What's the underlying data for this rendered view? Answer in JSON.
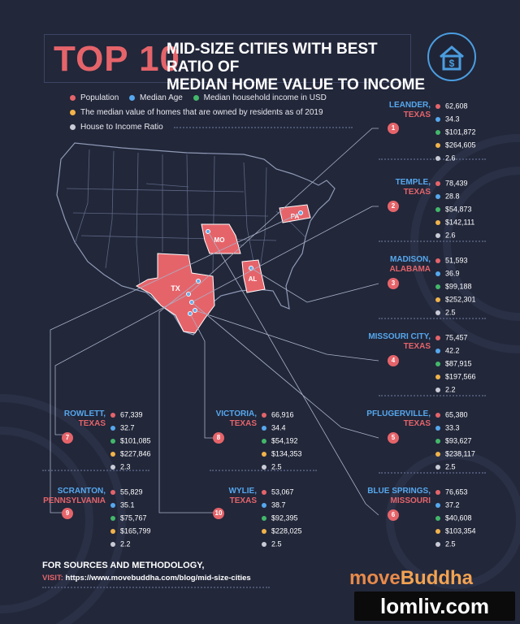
{
  "title": {
    "top10": "TOP 10",
    "line1": "MID-SIZE CITIES WITH BEST RATIO OF",
    "line2": "MEDIAN HOME VALUE TO INCOME"
  },
  "colors": {
    "population": "#e5646a",
    "age": "#56a8ee",
    "income": "#43b86a",
    "home_value": "#f1b34a",
    "ratio": "#c9ccd6"
  },
  "legend": {
    "population": "Population",
    "age": "Median Age",
    "income": "Median household income in USD",
    "home_value": "The median value of homes that are owned by residents as of 2019",
    "ratio": "House to Income Ratio"
  },
  "map_labels": {
    "pa": "PA",
    "mo": "MO",
    "al": "AL",
    "tx": "TX"
  },
  "cities": [
    {
      "rank": "1",
      "city": "LEANDER,",
      "state": "TEXAS",
      "population": "62,608",
      "age": "34.3",
      "income": "$101,872",
      "home_value": "$264,605",
      "ratio": "2.6"
    },
    {
      "rank": "2",
      "city": "TEMPLE,",
      "state": "TEXAS",
      "population": "78,439",
      "age": "28.8",
      "income": "$54,873",
      "home_value": "$142,111",
      "ratio": "2.6"
    },
    {
      "rank": "3",
      "city": "MADISON,",
      "state": "ALABAMA",
      "population": "51,593",
      "age": "36.9",
      "income": "$99,188",
      "home_value": "$252,301",
      "ratio": "2.5"
    },
    {
      "rank": "4",
      "city": "MISSOURI CITY,",
      "state": "TEXAS",
      "population": "75,457",
      "age": "42.2",
      "income": "$87,915",
      "home_value": "$197,566",
      "ratio": "2.2"
    },
    {
      "rank": "5",
      "city": "PFLUGERVILLE,",
      "state": "TEXAS",
      "population": "65,380",
      "age": "33.3",
      "income": "$93,627",
      "home_value": "$238,117",
      "ratio": "2.5"
    },
    {
      "rank": "6",
      "city": "BLUE SPRINGS,",
      "state": "MISSOURI",
      "population": "76,653",
      "age": "37.2",
      "income": "$40,608",
      "home_value": "$103,354",
      "ratio": "2.5"
    },
    {
      "rank": "7",
      "city": "ROWLETT,",
      "state": "TEXAS",
      "population": "67,339",
      "age": "32.7",
      "income": "$101,085",
      "home_value": "$227,846",
      "ratio": "2.3"
    },
    {
      "rank": "8",
      "city": "VICTORIA,",
      "state": "TEXAS",
      "population": "66,916",
      "age": "34.4",
      "income": "$54,192",
      "home_value": "$134,353",
      "ratio": "2.5"
    },
    {
      "rank": "9",
      "city": "SCRANTON,",
      "state": "PENNSYLVANIA",
      "population": "55,829",
      "age": "35.1",
      "income": "$75,767",
      "home_value": "$165,799",
      "ratio": "2.2"
    },
    {
      "rank": "10",
      "city": "WYLIE,",
      "state": "TEXAS",
      "population": "53,067",
      "age": "38.7",
      "income": "$92,395",
      "home_value": "$228,025",
      "ratio": "2.5"
    }
  ],
  "footer": {
    "methodology": "FOR SOURCES AND METHODOLOGY,",
    "visit_label": "VISIT:",
    "url": "https://www.movebuddha.com/blog/mid-size-cities"
  },
  "brand": {
    "move": "move",
    "buddha": "Buddha"
  },
  "watermark": "lomliv.com"
}
